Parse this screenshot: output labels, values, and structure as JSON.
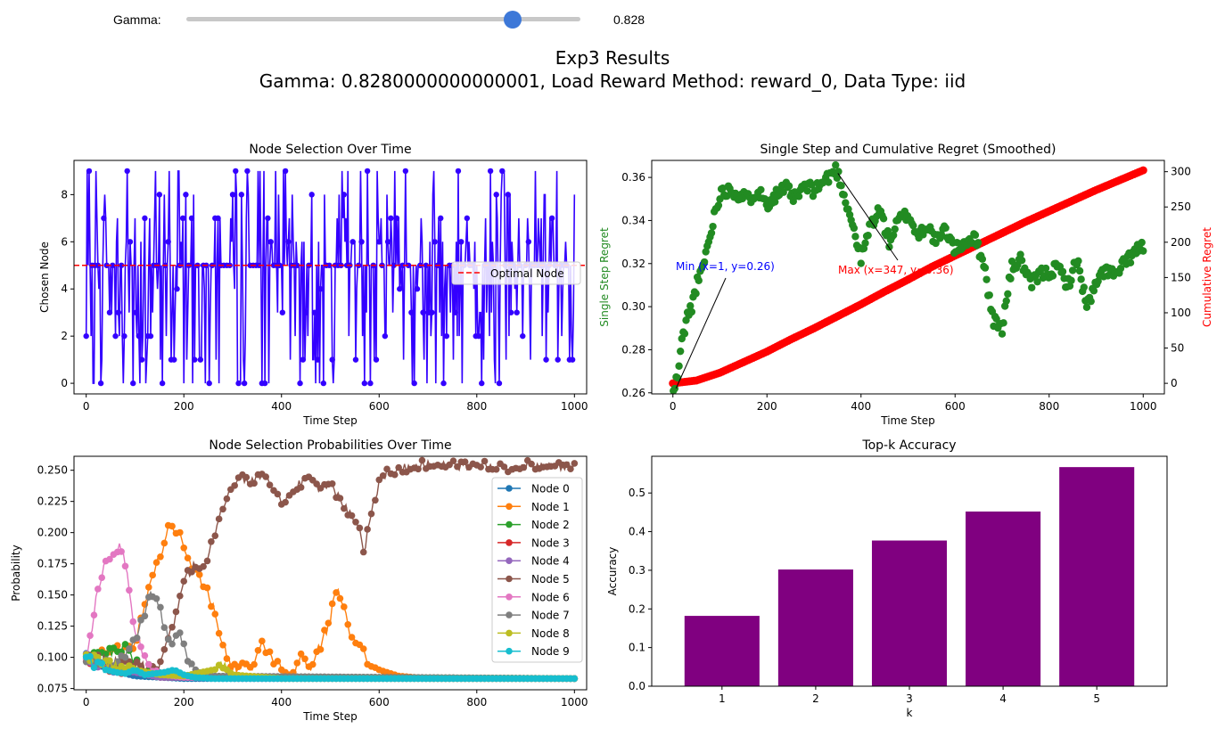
{
  "control": {
    "label": "Gamma:",
    "value_text": "0.828",
    "value": 0.828,
    "min": 0,
    "max": 1
  },
  "figure": {
    "title_line1": "Exp3 Results",
    "title_line2": "Gamma: 0.8280000000000001, Load Reward Method: reward_0, Data Type: iid"
  },
  "chart_data": [
    {
      "type": "line",
      "title": "Node Selection Over Time",
      "xlabel": "Time Step",
      "ylabel": "Chosen Node",
      "xlim": [
        -25,
        1025
      ],
      "ylim": [
        -0.45,
        9.45
      ],
      "xticks": [
        0,
        200,
        400,
        600,
        800,
        1000
      ],
      "yticks": [
        0,
        2,
        4,
        6,
        8
      ],
      "color": "#3300ff",
      "markers": true,
      "n_steps": 1000,
      "values_range": [
        0,
        9
      ],
      "reference_line": {
        "name": "Optimal Node",
        "y": 5,
        "color": "#ff0000",
        "style": "dashed"
      },
      "legend": {
        "position": "center-right",
        "entries": [
          "Optimal Node"
        ]
      }
    },
    {
      "type": "scatter",
      "title": "Single Step and Cumulative Regret (Smoothed)",
      "xlabel": "Time Step",
      "xlim": [
        -45,
        1045
      ],
      "xticks": [
        0,
        200,
        400,
        600,
        800,
        1000
      ],
      "y_left": {
        "label": "Single Step Regret",
        "color": "#228b22",
        "ylim": [
          0.2595,
          0.3679
        ],
        "ticks": [
          0.26,
          0.28,
          0.3,
          0.32,
          0.34,
          0.36
        ],
        "tick_labels": [
          "0.26",
          "0.28",
          "0.30",
          "0.32",
          "0.34",
          "0.36"
        ]
      },
      "y_right": {
        "label": "Cumulative Regret",
        "color": "#ff0000",
        "ylim": [
          -15,
          316
        ],
        "ticks": [
          0,
          50,
          100,
          150,
          200,
          250,
          300
        ]
      },
      "series": [
        {
          "axis": "left",
          "x": [
            1,
            10,
            20,
            30,
            40,
            50,
            60,
            70,
            80,
            90,
            100,
            120,
            140,
            160,
            180,
            200,
            220,
            240,
            260,
            280,
            300,
            320,
            330,
            347,
            360,
            380,
            400,
            420,
            440,
            460,
            480,
            500,
            520,
            540,
            560,
            580,
            600,
            620,
            640,
            660,
            680,
            700,
            720,
            740,
            760,
            780,
            800,
            820,
            840,
            860,
            880,
            900,
            920,
            940,
            960,
            980,
            1000
          ],
          "y": [
            0.26,
            0.268,
            0.285,
            0.295,
            0.3,
            0.31,
            0.315,
            0.325,
            0.333,
            0.345,
            0.352,
            0.355,
            0.352,
            0.35,
            0.354,
            0.348,
            0.352,
            0.355,
            0.35,
            0.356,
            0.354,
            0.358,
            0.36,
            0.364,
            0.355,
            0.34,
            0.322,
            0.338,
            0.345,
            0.33,
            0.34,
            0.343,
            0.333,
            0.338,
            0.33,
            0.336,
            0.326,
            0.33,
            0.332,
            0.322,
            0.294,
            0.29,
            0.318,
            0.322,
            0.31,
            0.315,
            0.316,
            0.318,
            0.31,
            0.322,
            0.3,
            0.31,
            0.318,
            0.314,
            0.32,
            0.325,
            0.328
          ]
        },
        {
          "axis": "right",
          "x": [
            0,
            50,
            100,
            150,
            200,
            250,
            300,
            350,
            400,
            450,
            500,
            550,
            600,
            650,
            700,
            750,
            800,
            850,
            900,
            950,
            1000
          ],
          "y": [
            0,
            4,
            15,
            30,
            45,
            62,
            78,
            95,
            112,
            130,
            147,
            165,
            181,
            197,
            213,
            229,
            244,
            259,
            274,
            288,
            302
          ]
        }
      ],
      "annotations": [
        {
          "text": "Min (x=1, y=0.26)",
          "color": "#0000ff",
          "point": [
            1,
            0.26
          ]
        },
        {
          "text": "Max (x=347, y=0.36)",
          "color": "#ff0000",
          "point": [
            347,
            0.364
          ]
        }
      ]
    },
    {
      "type": "line",
      "title": "Node Selection Probabilities Over Time",
      "xlabel": "Time Step",
      "ylabel": "Probability",
      "xlim": [
        -25,
        1025
      ],
      "ylim": [
        0.074,
        0.2612
      ],
      "xticks": [
        0,
        200,
        400,
        600,
        800,
        1000
      ],
      "yticks": [
        0.075,
        0.1,
        0.125,
        0.15,
        0.175,
        0.2,
        0.225,
        0.25
      ],
      "ytick_labels": [
        "0.075",
        "0.100",
        "0.125",
        "0.150",
        "0.175",
        "0.200",
        "0.225",
        "0.250"
      ],
      "markers": true,
      "legend": {
        "position": "upper-right"
      },
      "series": [
        {
          "name": "Node 0",
          "color": "#1f77b4",
          "x": [
            0,
            50,
            100,
            200,
            1000
          ],
          "y": [
            0.1,
            0.09,
            0.085,
            0.083,
            0.083
          ]
        },
        {
          "name": "Node 1",
          "color": "#ff7f0e",
          "x": [
            0,
            100,
            130,
            150,
            170,
            190,
            200,
            220,
            240,
            260,
            280,
            300,
            320,
            340,
            360,
            380,
            400,
            420,
            440,
            460,
            480,
            500,
            510,
            520,
            530,
            540,
            560,
            580,
            600,
            640,
            700,
            1000
          ],
          "y": [
            0.1,
            0.11,
            0.16,
            0.18,
            0.205,
            0.2,
            0.19,
            0.17,
            0.16,
            0.14,
            0.11,
            0.09,
            0.095,
            0.09,
            0.11,
            0.1,
            0.09,
            0.085,
            0.1,
            0.09,
            0.11,
            0.13,
            0.155,
            0.15,
            0.14,
            0.12,
            0.11,
            0.095,
            0.09,
            0.085,
            0.083,
            0.083
          ]
        },
        {
          "name": "Node 2",
          "color": "#2ca02c",
          "x": [
            0,
            60,
            80,
            100,
            150,
            1000
          ],
          "y": [
            0.1,
            0.105,
            0.11,
            0.095,
            0.085,
            0.083
          ]
        },
        {
          "name": "Node 3",
          "color": "#d62728",
          "x": [
            0,
            50,
            150,
            1000
          ],
          "y": [
            0.1,
            0.092,
            0.084,
            0.083
          ]
        },
        {
          "name": "Node 4",
          "color": "#9467bd",
          "x": [
            0,
            50,
            150,
            1000
          ],
          "y": [
            0.1,
            0.092,
            0.084,
            0.083
          ]
        },
        {
          "name": "Node 5",
          "color": "#8c564b",
          "x": [
            0,
            150,
            180,
            200,
            220,
            240,
            260,
            280,
            300,
            320,
            340,
            360,
            380,
            400,
            420,
            440,
            460,
            480,
            500,
            520,
            540,
            560,
            570,
            580,
            590,
            600,
            620,
            640,
            660,
            680,
            700,
            750,
            800,
            850,
            870,
            880,
            900,
            950,
            1000
          ],
          "y": [
            0.1,
            0.09,
            0.13,
            0.16,
            0.175,
            0.17,
            0.195,
            0.22,
            0.235,
            0.245,
            0.24,
            0.248,
            0.24,
            0.225,
            0.23,
            0.24,
            0.245,
            0.235,
            0.24,
            0.225,
            0.215,
            0.2,
            0.185,
            0.21,
            0.225,
            0.24,
            0.25,
            0.25,
            0.252,
            0.254,
            0.254,
            0.254,
            0.254,
            0.254,
            0.252,
            0.251,
            0.254,
            0.254,
            0.254
          ]
        },
        {
          "name": "Node 6",
          "color": "#e377c2",
          "x": [
            0,
            10,
            20,
            30,
            40,
            50,
            60,
            70,
            80,
            90,
            100,
            120,
            140,
            160,
            200,
            300,
            1000
          ],
          "y": [
            0.1,
            0.12,
            0.145,
            0.165,
            0.175,
            0.18,
            0.185,
            0.19,
            0.175,
            0.15,
            0.12,
            0.1,
            0.09,
            0.086,
            0.084,
            0.083,
            0.083
          ]
        },
        {
          "name": "Node 7",
          "color": "#7f7f7f",
          "x": [
            0,
            60,
            80,
            100,
            110,
            120,
            130,
            140,
            150,
            160,
            170,
            180,
            190,
            200,
            210,
            230,
            260,
            1000
          ],
          "y": [
            0.1,
            0.095,
            0.1,
            0.115,
            0.125,
            0.135,
            0.15,
            0.152,
            0.14,
            0.125,
            0.115,
            0.112,
            0.118,
            0.108,
            0.096,
            0.088,
            0.085,
            0.083
          ]
        },
        {
          "name": "Node 8",
          "color": "#bcbd22",
          "x": [
            0,
            100,
            150,
            200,
            260,
            280,
            300,
            400,
            1000
          ],
          "y": [
            0.1,
            0.09,
            0.086,
            0.085,
            0.09,
            0.093,
            0.086,
            0.083,
            0.083
          ]
        },
        {
          "name": "Node 9",
          "color": "#17becf",
          "x": [
            0,
            10,
            20,
            40,
            60,
            80,
            100,
            120,
            160,
            180,
            200,
            220,
            260,
            300,
            1000
          ],
          "y": [
            0.1,
            0.097,
            0.094,
            0.09,
            0.088,
            0.087,
            0.09,
            0.086,
            0.088,
            0.09,
            0.086,
            0.084,
            0.083,
            0.083,
            0.083
          ]
        }
      ]
    },
    {
      "type": "bar",
      "title": "Top-k Accuracy",
      "xlabel": "k",
      "ylabel": "Accuracy",
      "categories": [
        "1",
        "2",
        "3",
        "4",
        "5"
      ],
      "values": [
        0.182,
        0.302,
        0.377,
        0.452,
        0.567
      ],
      "ylim": [
        0,
        0.595
      ],
      "yticks": [
        0.0,
        0.1,
        0.2,
        0.3,
        0.4,
        0.5
      ],
      "ytick_labels": [
        "0.0",
        "0.1",
        "0.2",
        "0.3",
        "0.4",
        "0.5"
      ],
      "color": "#800080"
    }
  ]
}
